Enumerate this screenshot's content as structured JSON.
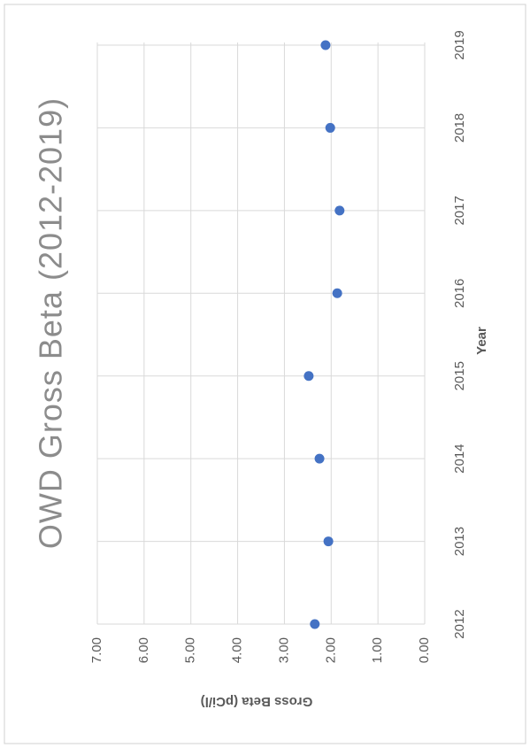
{
  "chart_data": {
    "type": "scatter",
    "title": "OWD Gross Beta (2012-2019)",
    "x_label": "Year",
    "y_label": "Gross Beta (pCi/l)",
    "x": [
      2012,
      2013,
      2014,
      2015,
      2016,
      2017,
      2018,
      2019
    ],
    "series": [
      {
        "name": "Gross Beta",
        "color": "#4472c4",
        "values": [
          2.35,
          2.06,
          2.25,
          2.48,
          1.87,
          1.82,
          2.02,
          2.12
        ]
      }
    ],
    "xlim": [
      2012,
      2019
    ],
    "xticks": [
      2012,
      2013,
      2014,
      2015,
      2016,
      2017,
      2018,
      2019
    ],
    "ylim": [
      0,
      7
    ],
    "yticks": [
      {
        "value": 0,
        "label": "0.00"
      },
      {
        "value": 1,
        "label": "1.00"
      },
      {
        "value": 2,
        "label": "2.00"
      },
      {
        "value": 3,
        "label": "3.00"
      },
      {
        "value": 4,
        "label": "4.00"
      },
      {
        "value": 5,
        "label": "5.00"
      },
      {
        "value": 6,
        "label": "6.00"
      },
      {
        "value": 7,
        "label": "7.00"
      }
    ],
    "grid": true
  }
}
